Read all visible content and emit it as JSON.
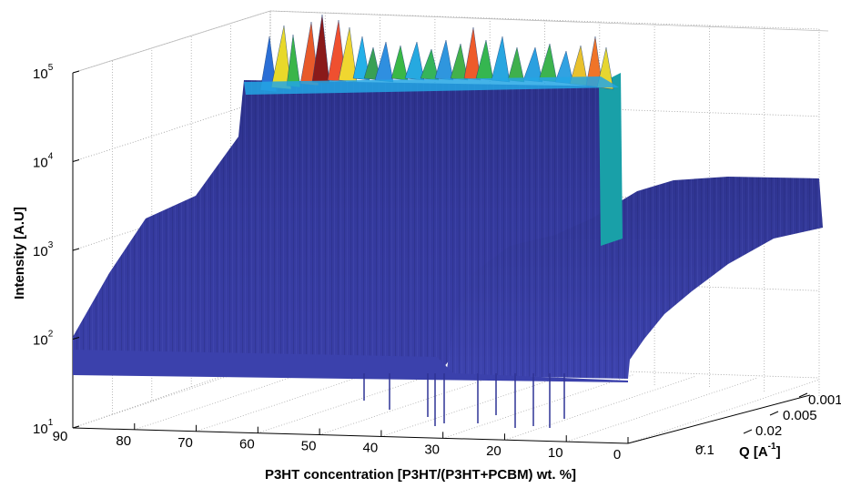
{
  "chart_data": {
    "type": "surface3d",
    "xlabel": "P3HT concentration [P3HT/(P3HT+PCBM) wt. %]",
    "ylabel": "Q [A",
    "ylabel_sup": "-1",
    "ylabel_close": "]",
    "zlabel": "Intensity [A.U]",
    "zscale": "log",
    "zlim": [
      10,
      100000
    ],
    "z_ticks": [
      {
        "base": "10",
        "exp": "1"
      },
      {
        "base": "10",
        "exp": "2"
      },
      {
        "base": "10",
        "exp": "3"
      },
      {
        "base": "10",
        "exp": "4"
      },
      {
        "base": "10",
        "exp": "5"
      }
    ],
    "x_ticks": [
      "90",
      "80",
      "70",
      "60",
      "50",
      "40",
      "30",
      "20",
      "10",
      "0"
    ],
    "x_tick_values": [
      90,
      80,
      70,
      60,
      50,
      40,
      30,
      20,
      10,
      0
    ],
    "y_ticks": [
      "0.001",
      "0.005",
      "0.02",
      "0.1"
    ],
    "y_tick_values": [
      0.001,
      0.005,
      0.02,
      0.1
    ],
    "grid": true,
    "colormap": "jet",
    "series": [
      {
        "concentration_range": [
          90,
          10
        ],
        "q_range": [
          0.1,
          0.001
        ],
        "intensity_low": 40,
        "intensity_high": 20000
      },
      {
        "concentration_range": [
          8,
          0
        ],
        "q_range": [
          0.1,
          0.005
        ],
        "intensity_low": 40,
        "intensity_high": 3000
      }
    ]
  }
}
